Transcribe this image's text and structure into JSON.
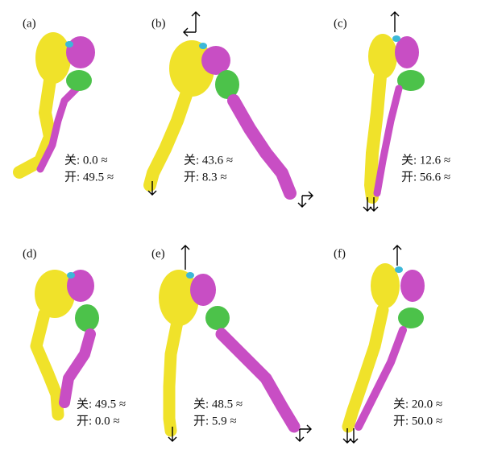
{
  "panels": [
    {
      "label": "(a)",
      "closed": "关: 0.0 ≈",
      "open": "开: 49.5 ≈"
    },
    {
      "label": "(b)",
      "closed": "关: 43.6 ≈",
      "open": "开: 8.3 ≈"
    },
    {
      "label": "(c)",
      "closed": "关: 12.6 ≈",
      "open": "开: 56.6 ≈"
    },
    {
      "label": "(d)",
      "closed": "关: 49.5 ≈",
      "open": "开: 0.0 ≈"
    },
    {
      "label": "(e)",
      "closed": "关: 48.5 ≈",
      "open": "开: 5.9 ≈"
    },
    {
      "label": "(f)",
      "closed": "关: 20.0 ≈",
      "open": "开: 50.0 ≈"
    }
  ]
}
